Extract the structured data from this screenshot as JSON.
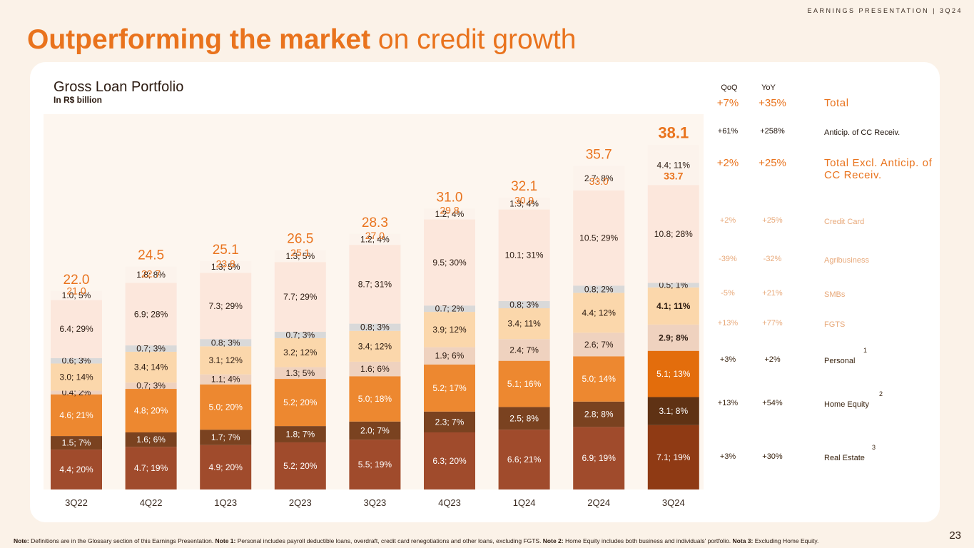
{
  "header": {
    "tag": "EARNINGS PRESENTATION | 3Q24",
    "title_bold": "Outperforming the market",
    "title_light": "on credit growth"
  },
  "colors": {
    "accent": "#e9731d",
    "real_estate_dark": "#8f3a14",
    "real_estate": "#a04b2c",
    "home_equity_dark": "#5f3214",
    "home_equity": "#7a4220",
    "personal_dark": "#e36d0c",
    "personal": "#ed8830",
    "fgts": "#efd2bf",
    "smbs": "#fbd7ab",
    "agri": "#d9d9d9",
    "credit_card": "#fce7dc",
    "anticip": "#fcf3ec",
    "panel": "#ffffff",
    "bg": "#fbf2e8"
  },
  "chart_data": {
    "type": "bar",
    "stacked": true,
    "title": "Gross Loan Portfolio",
    "subtitle": "In R$ billion",
    "categories": [
      "3Q22",
      "4Q22",
      "1Q23",
      "2Q23",
      "3Q23",
      "4Q23",
      "1Q24",
      "2Q24",
      "3Q24"
    ],
    "series": [
      {
        "name": "Real Estate",
        "values": [
          4.4,
          4.7,
          4.9,
          5.2,
          5.5,
          6.3,
          6.6,
          6.9,
          7.1
        ],
        "labels": [
          "4.4; 20%",
          "4.7; 19%",
          "4.9; 20%",
          "5.2; 20%",
          "5.5; 19%",
          "6.3; 20%",
          "6.6; 21%",
          "6.9; 19%",
          "7.1; 19%"
        ]
      },
      {
        "name": "Home Equity",
        "values": [
          1.5,
          1.6,
          1.7,
          1.8,
          2.0,
          2.3,
          2.5,
          2.8,
          3.1
        ],
        "labels": [
          "1.5; 7%",
          "1.6; 6%",
          "1.7; 7%",
          "1.8; 7%",
          "2.0; 7%",
          "2.3; 7%",
          "2.5; 8%",
          "2.8; 8%",
          "3.1; 8%"
        ]
      },
      {
        "name": "Personal",
        "values": [
          4.6,
          4.8,
          5.0,
          5.2,
          5.0,
          5.2,
          5.1,
          5.0,
          5.1
        ],
        "labels": [
          "4.6; 21%",
          "4.8; 20%",
          "5.0; 20%",
          "5.2; 20%",
          "5.0; 18%",
          "5.2; 17%",
          "5.1; 16%",
          "5.0; 14%",
          "5.1; 13%"
        ]
      },
      {
        "name": "FGTS",
        "values": [
          0.4,
          0.7,
          1.1,
          1.3,
          1.6,
          1.9,
          2.4,
          2.6,
          2.9
        ],
        "labels": [
          "0.4; 2%",
          "0.7; 3%",
          "1.1; 4%",
          "1.3; 5%",
          "1.6; 6%",
          "1.9; 6%",
          "2.4; 7%",
          "2.6; 7%",
          "2.9; 8%"
        ]
      },
      {
        "name": "SMBs",
        "values": [
          3.0,
          3.4,
          3.1,
          3.2,
          3.4,
          3.9,
          3.4,
          4.4,
          4.1
        ],
        "labels": [
          "3.0; 14%",
          "3.4; 14%",
          "3.1; 12%",
          "3.2; 12%",
          "3.4; 12%",
          "3.9; 12%",
          "3.4; 11%",
          "4.4; 12%",
          "4.1; 11%"
        ]
      },
      {
        "name": "Agribusiness",
        "values": [
          0.6,
          0.7,
          0.8,
          0.7,
          0.8,
          0.7,
          0.8,
          0.8,
          0.5
        ],
        "labels": [
          "0.6; 3%",
          "0.7; 3%",
          "0.8; 3%",
          "0.7; 3%",
          "0.8; 3%",
          "0.7; 2%",
          "0.8; 3%",
          "0.8; 2%",
          "0.5; 1%"
        ]
      },
      {
        "name": "Credit Card",
        "values": [
          6.4,
          6.9,
          7.3,
          7.7,
          8.7,
          9.5,
          10.1,
          10.5,
          10.8
        ],
        "labels": [
          "6.4; 29%",
          "6.9; 28%",
          "7.3; 29%",
          "7.7; 29%",
          "8.7; 31%",
          "9.5; 30%",
          "10.1; 31%",
          "10.5; 29%",
          "10.8; 28%"
        ]
      },
      {
        "name": "Anticip. of CC Receiv.",
        "values": [
          1.0,
          1.8,
          1.3,
          1.3,
          1.2,
          1.2,
          1.3,
          2.7,
          4.4
        ],
        "labels": [
          "1.0; 5%",
          "1.8; 8%",
          "1.3; 5%",
          "1.3; 5%",
          "1.2; 4%",
          "1.2; 4%",
          "1.3; 4%",
          "2.7; 8%",
          "4.4; 11%"
        ]
      }
    ],
    "totals": [
      "22.0",
      "24.5",
      "25.1",
      "26.5",
      "28.3",
      "31.0",
      "32.1",
      "35.7",
      "38.1"
    ],
    "totals_excl_anticip": [
      "21.0",
      "22.7",
      "23.8",
      "25.1",
      "27.0",
      "29.8",
      "30.9",
      "33.0",
      "33.7"
    ],
    "ylim": [
      0,
      42
    ]
  },
  "summary": {
    "qoq_header": "QoQ",
    "yoy_header": "YoY",
    "rows": [
      {
        "key": "total",
        "qoq": "+7%",
        "yoy": "+35%",
        "label": "Total",
        "style": "big"
      },
      {
        "key": "anticip",
        "qoq": "+61%",
        "yoy": "+258%",
        "label": "Anticip. of CC Receiv.",
        "style": "mid"
      },
      {
        "key": "excl",
        "qoq": "+2%",
        "yoy": "+25%",
        "label": "Total Excl. Anticip. of CC Receiv.",
        "style": "big"
      },
      {
        "key": "credit-card",
        "qoq": "+2%",
        "yoy": "+25%",
        "label": "Credit Card",
        "style": "muted"
      },
      {
        "key": "agribusiness",
        "qoq": "-39%",
        "yoy": "-32%",
        "label": "Agribusiness",
        "style": "muted"
      },
      {
        "key": "smbs",
        "qoq": "-5%",
        "yoy": "+21%",
        "label": "SMBs",
        "style": "muted"
      },
      {
        "key": "fgts",
        "qoq": "+13%",
        "yoy": "+77%",
        "label": "FGTS",
        "style": "muted"
      },
      {
        "key": "personal",
        "qoq": "+3%",
        "yoy": "+2%",
        "label": "Personal",
        "style": "dark",
        "note": "1"
      },
      {
        "key": "home-equity",
        "qoq": "+13%",
        "yoy": "+54%",
        "label": "Home Equity",
        "style": "dark",
        "note": "2"
      },
      {
        "key": "real-estate",
        "qoq": "+3%",
        "yoy": "+30%",
        "label": "Real Estate",
        "style": "dark",
        "note": "3"
      }
    ]
  },
  "footnote": {
    "note_label": "Note:",
    "note_text": " Definitions are in the Glossary section of this Earnings Presentation. ",
    "note1_label": "Note 1:",
    "note1_text": " Personal includes payroll deductible loans, overdraft, credit card renegotiations and other loans, excluding FGTS. ",
    "note2_label": "Note 2:",
    "note2_text": " Home Equity includes both business and individuals' portfolio. ",
    "note3_label": "Nota 3:",
    "note3_text": " Excluding Home Equity."
  },
  "page_number": "23"
}
